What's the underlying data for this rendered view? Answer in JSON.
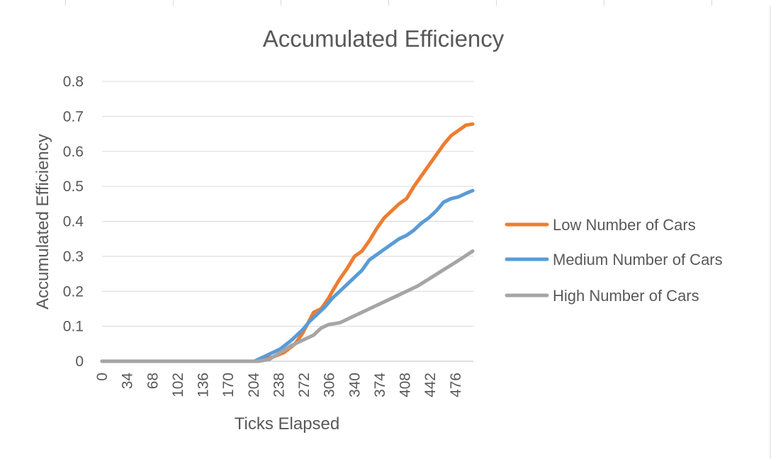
{
  "chart_data": {
    "type": "line",
    "title": "Accumulated Efficiency",
    "xlabel": "Ticks Elapsed",
    "ylabel": "Accumulated Efficiency",
    "x_ticks": [
      "0",
      "34",
      "68",
      "102",
      "136",
      "170",
      "204",
      "238",
      "272",
      "306",
      "340",
      "374",
      "408",
      "442",
      "476"
    ],
    "y_ticks": [
      "0",
      "0.1",
      "0.2",
      "0.3",
      "0.4",
      "0.5",
      "0.6",
      "0.7",
      "0.8"
    ],
    "xlim": [
      0,
      500
    ],
    "ylim": [
      0,
      0.8
    ],
    "grid": "horizontal",
    "legend": "right",
    "series": [
      {
        "name": "Low Number of Cars",
        "color": "#ED7D31",
        "points": [
          [
            0,
            0
          ],
          [
            205,
            0
          ],
          [
            215,
            0.005
          ],
          [
            230,
            0.012
          ],
          [
            245,
            0.025
          ],
          [
            260,
            0.05
          ],
          [
            270,
            0.08
          ],
          [
            280,
            0.12
          ],
          [
            285,
            0.14
          ],
          [
            295,
            0.15
          ],
          [
            300,
            0.165
          ],
          [
            305,
            0.18
          ],
          [
            310,
            0.2
          ],
          [
            320,
            0.235
          ],
          [
            330,
            0.265
          ],
          [
            340,
            0.3
          ],
          [
            350,
            0.315
          ],
          [
            360,
            0.345
          ],
          [
            370,
            0.38
          ],
          [
            380,
            0.41
          ],
          [
            390,
            0.43
          ],
          [
            400,
            0.45
          ],
          [
            410,
            0.465
          ],
          [
            420,
            0.5
          ],
          [
            430,
            0.53
          ],
          [
            440,
            0.56
          ],
          [
            450,
            0.59
          ],
          [
            460,
            0.62
          ],
          [
            470,
            0.645
          ],
          [
            480,
            0.66
          ],
          [
            490,
            0.675
          ],
          [
            499,
            0.678
          ]
        ]
      },
      {
        "name": "Medium Number of Cars",
        "color": "#5B9BD5",
        "points": [
          [
            0,
            0
          ],
          [
            205,
            0
          ],
          [
            215,
            0.01
          ],
          [
            225,
            0.02
          ],
          [
            240,
            0.035
          ],
          [
            255,
            0.06
          ],
          [
            270,
            0.09
          ],
          [
            280,
            0.115
          ],
          [
            290,
            0.135
          ],
          [
            300,
            0.155
          ],
          [
            310,
            0.18
          ],
          [
            320,
            0.2
          ],
          [
            330,
            0.22
          ],
          [
            340,
            0.24
          ],
          [
            350,
            0.26
          ],
          [
            360,
            0.29
          ],
          [
            370,
            0.305
          ],
          [
            380,
            0.32
          ],
          [
            390,
            0.335
          ],
          [
            400,
            0.35
          ],
          [
            410,
            0.36
          ],
          [
            420,
            0.375
          ],
          [
            430,
            0.395
          ],
          [
            440,
            0.41
          ],
          [
            450,
            0.43
          ],
          [
            460,
            0.455
          ],
          [
            470,
            0.465
          ],
          [
            480,
            0.47
          ],
          [
            490,
            0.48
          ],
          [
            499,
            0.488
          ]
        ]
      },
      {
        "name": "High Number of Cars",
        "color": "#A5A5A5",
        "points": [
          [
            0,
            0
          ],
          [
            210,
            0
          ],
          [
            225,
            0.005
          ],
          [
            240,
            0.025
          ],
          [
            255,
            0.045
          ],
          [
            270,
            0.06
          ],
          [
            285,
            0.075
          ],
          [
            295,
            0.095
          ],
          [
            305,
            0.105
          ],
          [
            320,
            0.11
          ],
          [
            335,
            0.125
          ],
          [
            350,
            0.14
          ],
          [
            365,
            0.155
          ],
          [
            380,
            0.17
          ],
          [
            395,
            0.185
          ],
          [
            410,
            0.2
          ],
          [
            425,
            0.215
          ],
          [
            440,
            0.235
          ],
          [
            455,
            0.255
          ],
          [
            470,
            0.275
          ],
          [
            485,
            0.295
          ],
          [
            499,
            0.315
          ]
        ]
      }
    ]
  }
}
